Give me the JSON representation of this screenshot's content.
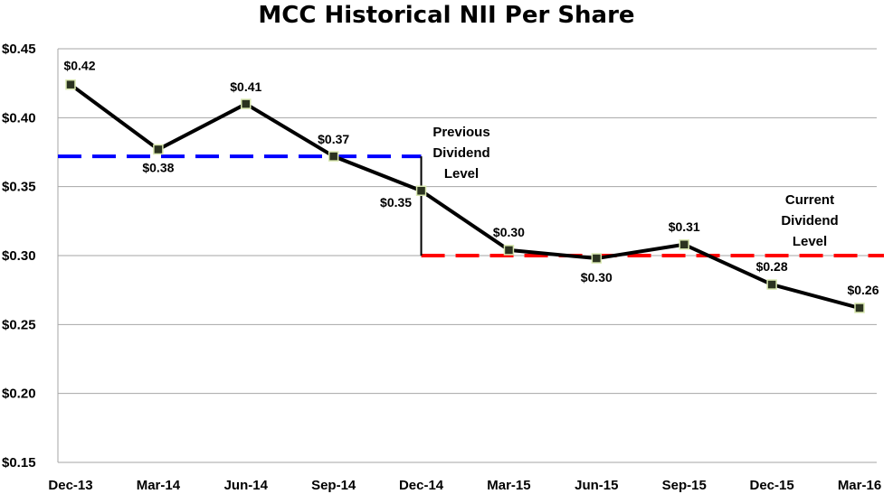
{
  "chart_data": {
    "type": "line",
    "title": "MCC Historical NII Per Share",
    "categories": [
      "Dec-13",
      "Mar-14",
      "Jun-14",
      "Sep-14",
      "Dec-14",
      "Mar-15",
      "Jun-15",
      "Sep-15",
      "Dec-15",
      "Mar-16"
    ],
    "series": [
      {
        "values": [
          0.424,
          0.377,
          0.41,
          0.372,
          0.347,
          0.304,
          0.298,
          0.308,
          0.279,
          0.262
        ],
        "data_labels": [
          "$0.42",
          "$0.38",
          "$0.41",
          "$0.37",
          "$0.35",
          "$0.30",
          "$0.30",
          "$0.31",
          "$0.28",
          "$0.26"
        ],
        "color": "#000000",
        "marker_color": "#2b3320"
      }
    ],
    "ylim": [
      0.15,
      0.45
    ],
    "yticks": [
      0.15,
      0.2,
      0.25,
      0.3,
      0.35,
      0.4,
      0.45
    ],
    "ytick_labels": [
      "$0.15",
      "$0.20",
      "$0.25",
      "$0.30",
      "$0.35",
      "$0.40",
      "$0.45"
    ],
    "grid": true,
    "reference_lines": [
      {
        "label": "Previous Dividend Level",
        "label_lines": [
          "Previous",
          "Dividend",
          "Level"
        ],
        "value": 0.372,
        "start_category": "Dec-13",
        "end_category": "Dec-14",
        "color": "#0000ff",
        "style": "dashed"
      },
      {
        "label": "Current Dividend Level",
        "label_lines": [
          "Current",
          "Dividend",
          "Level"
        ],
        "value": 0.3,
        "start_category": "Dec-14",
        "end_category": "Mar-16",
        "color": "#ff0000",
        "style": "dashed"
      }
    ]
  }
}
